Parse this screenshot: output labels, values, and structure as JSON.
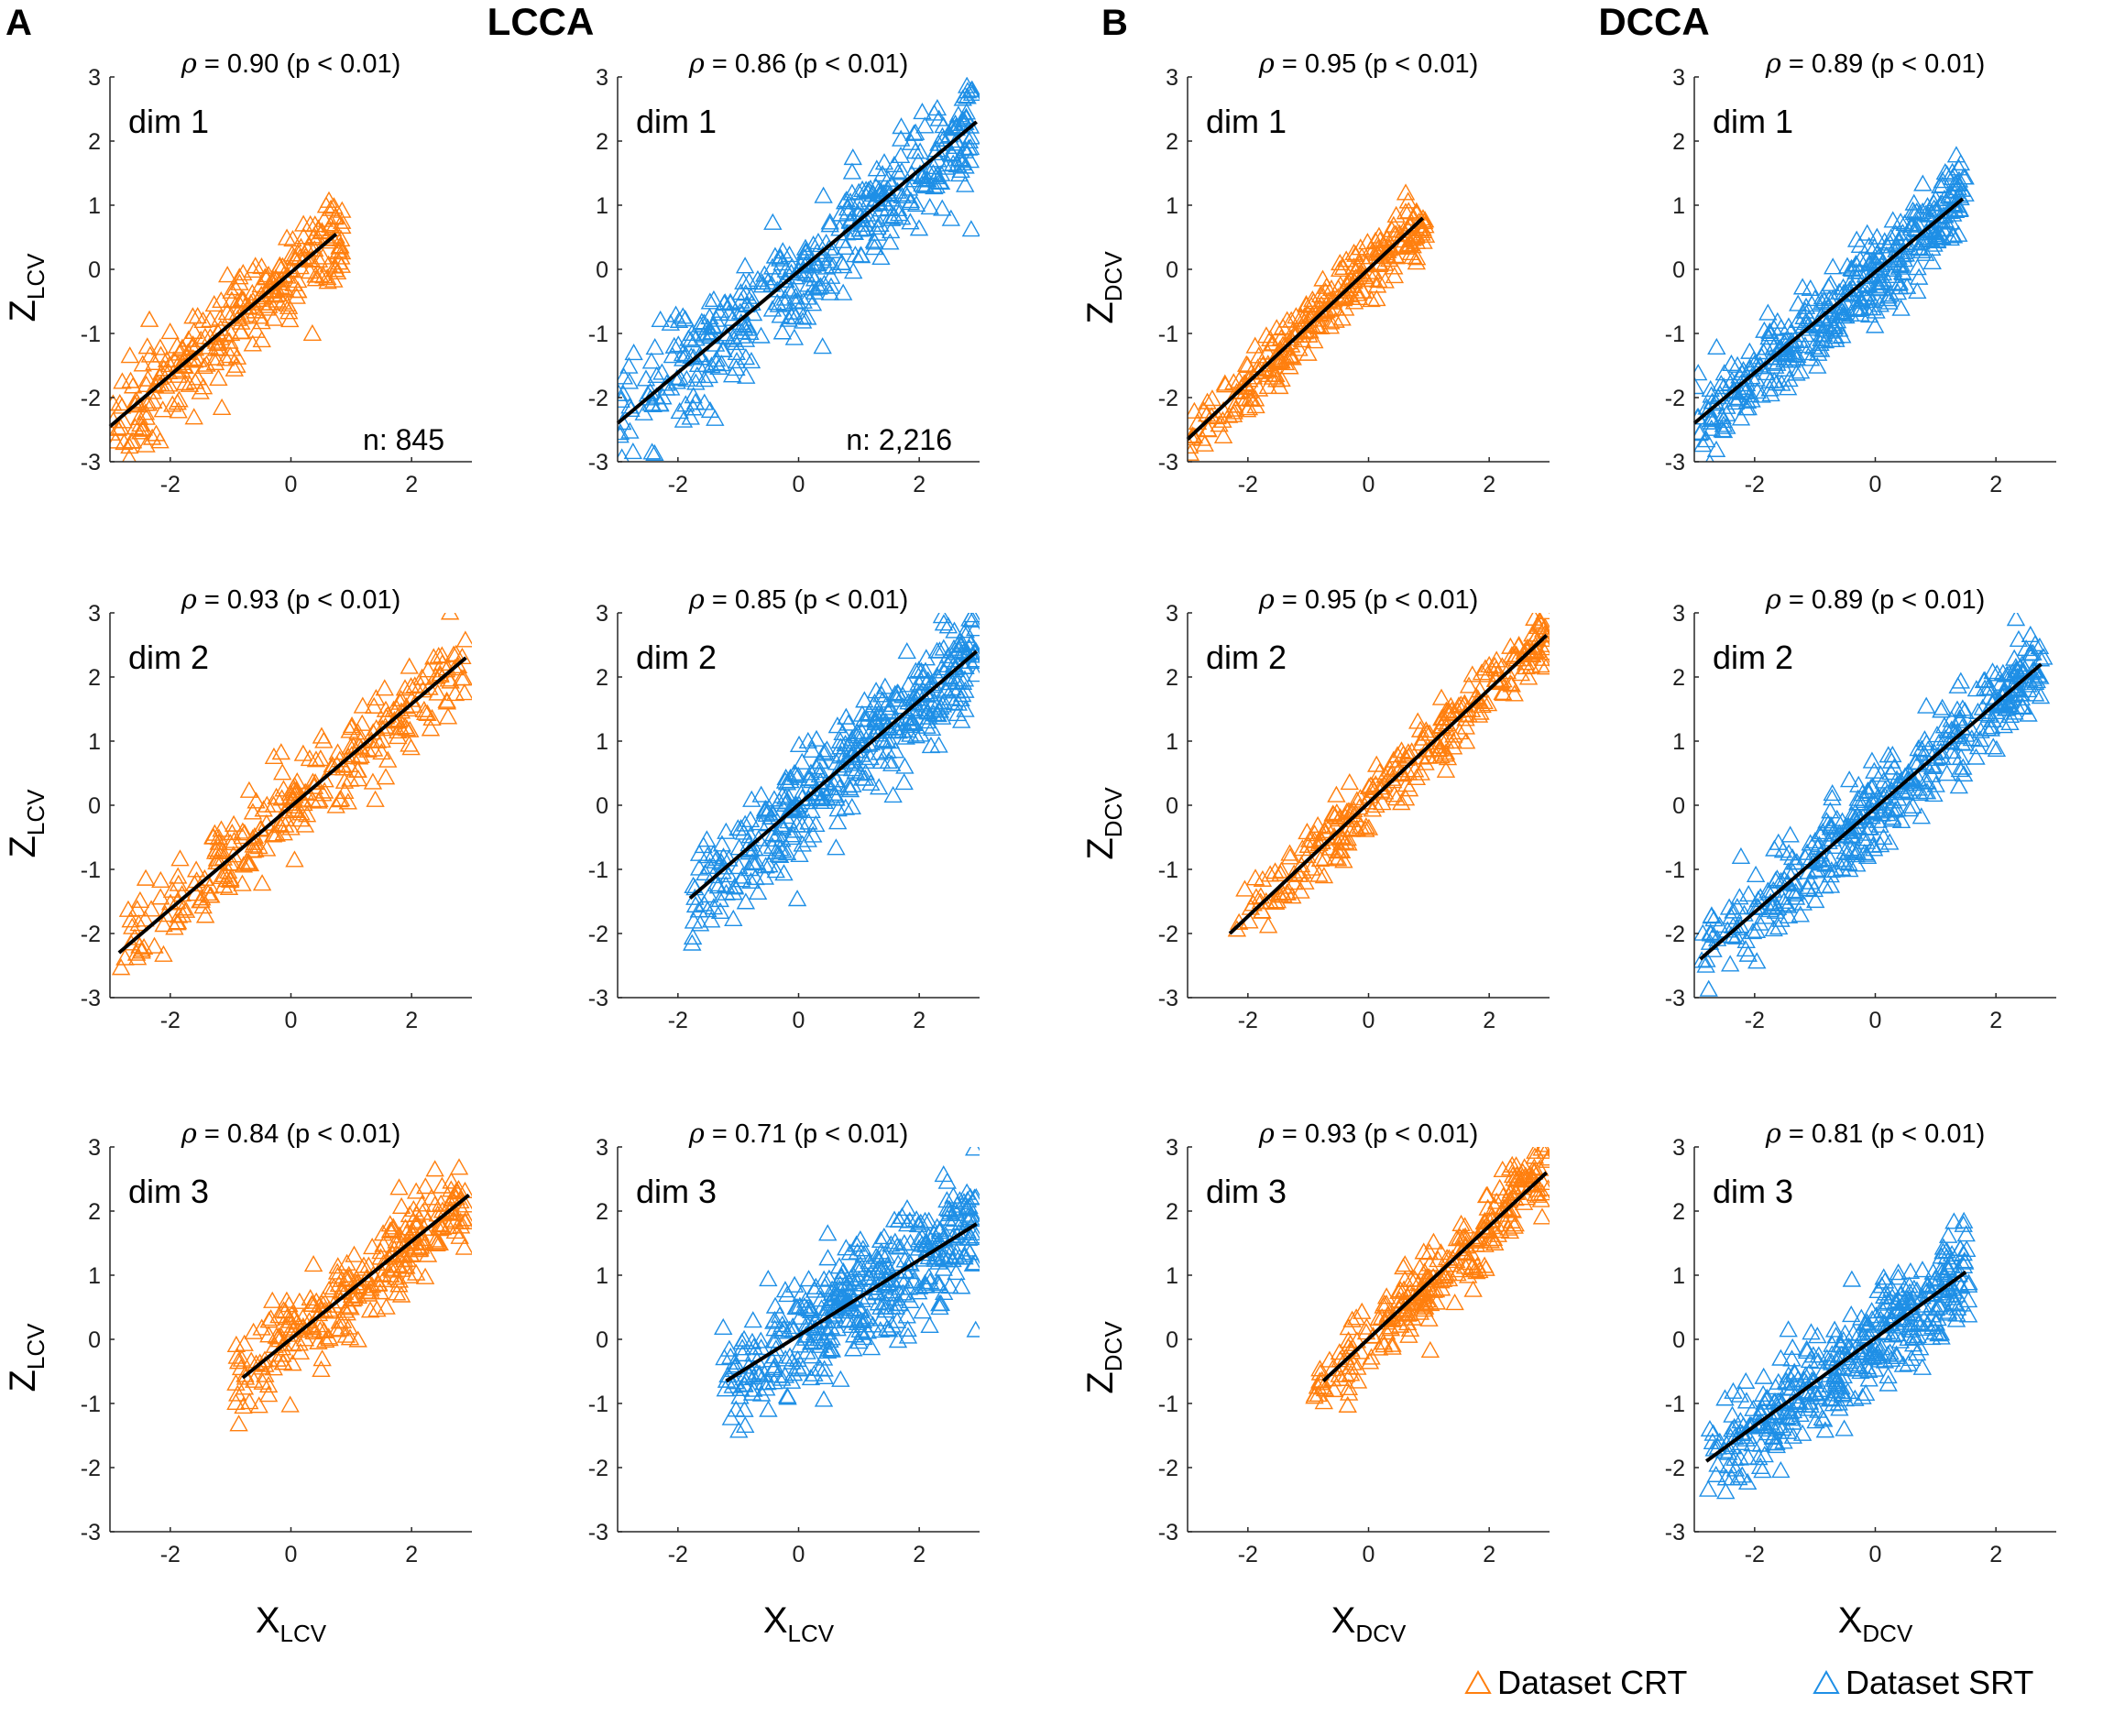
{
  "figure": {
    "panel_a_label": "A",
    "panel_b_label": "B",
    "panel_a_title": "LCCA",
    "panel_b_title": "DCCA",
    "legend": [
      {
        "label": "Dataset CRT",
        "color": "#FF7F0E"
      },
      {
        "label": "Dataset SRT",
        "color": "#1E8FE6"
      }
    ],
    "colors": {
      "CRT": "#FF7F0E",
      "SRT": "#1E8FE6",
      "fit": "#000000"
    }
  },
  "chart_data": [
    {
      "type": "scatter",
      "method": "LCCA",
      "dataset": "CRT",
      "dim_label": "dim 1",
      "rho_text": "= 0.90 (p < 0.01)",
      "rho": 0.9,
      "p": "< 0.01",
      "n_label": "n: 845",
      "xlabel": "X",
      "xlabel_sub": "LCV",
      "ylabel": "Z",
      "ylabel_sub": "LCV",
      "xlim": [
        -3,
        3
      ],
      "ylim": [
        -3,
        3
      ],
      "xticks": [
        -2,
        0,
        2
      ],
      "yticks": [
        -3,
        -2,
        -1,
        0,
        1,
        2,
        3
      ],
      "xrange": [
        -3.0,
        0.85
      ],
      "fit_line": {
        "x": [
          -3.0,
          0.75
        ],
        "y": [
          -2.45,
          0.55
        ]
      },
      "spread": 0.35
    },
    {
      "type": "scatter",
      "method": "LCCA",
      "dataset": "SRT",
      "dim_label": "dim 1",
      "rho_text": "= 0.86 (p < 0.01)",
      "rho": 0.86,
      "p": "< 0.01",
      "n_label": "n: 2,216",
      "xlabel": "X",
      "xlabel_sub": "LCV",
      "ylabel": "Z",
      "ylabel_sub": "LCV",
      "xlim": [
        -3,
        3
      ],
      "ylim": [
        -3,
        3
      ],
      "xticks": [
        -2,
        0,
        2
      ],
      "yticks": [
        -3,
        -2,
        -1,
        0,
        1,
        2,
        3
      ],
      "xrange": [
        -3.0,
        2.9
      ],
      "fit_line": {
        "x": [
          -3.0,
          2.95
        ],
        "y": [
          -2.4,
          2.3
        ]
      },
      "spread": 0.45
    },
    {
      "type": "scatter",
      "method": "DCCA",
      "dataset": "CRT",
      "dim_label": "dim 1",
      "rho_text": "= 0.95 (p < 0.01)",
      "rho": 0.95,
      "p": "< 0.01",
      "xlabel": "X",
      "xlabel_sub": "DCV",
      "ylabel": "Z",
      "ylabel_sub": "DCV",
      "xlim": [
        -3,
        3
      ],
      "ylim": [
        -3,
        3
      ],
      "xticks": [
        -2,
        0,
        2
      ],
      "yticks": [
        -3,
        -2,
        -1,
        0,
        1,
        2,
        3
      ],
      "xrange": [
        -3.0,
        0.95
      ],
      "fit_line": {
        "x": [
          -3.0,
          0.9
        ],
        "y": [
          -2.65,
          0.8
        ]
      },
      "spread": 0.25
    },
    {
      "type": "scatter",
      "method": "DCCA",
      "dataset": "SRT",
      "dim_label": "dim 1",
      "rho_text": "= 0.89 (p < 0.01)",
      "rho": 0.89,
      "p": "< 0.01",
      "xlabel": "X",
      "xlabel_sub": "DCV",
      "ylabel": "Z",
      "ylabel_sub": "DCV",
      "xlim": [
        -3,
        3
      ],
      "ylim": [
        -3,
        3
      ],
      "xticks": [
        -2,
        0,
        2
      ],
      "yticks": [
        -3,
        -2,
        -1,
        0,
        1,
        2,
        3
      ],
      "xrange": [
        -3.0,
        1.5
      ],
      "fit_line": {
        "x": [
          -3.0,
          1.45
        ],
        "y": [
          -2.4,
          1.1
        ]
      },
      "spread": 0.35
    },
    {
      "type": "scatter",
      "method": "LCCA",
      "dataset": "CRT",
      "dim_label": "dim 2",
      "rho_text": "= 0.93 (p < 0.01)",
      "rho": 0.93,
      "p": "< 0.01",
      "xlabel": "X",
      "xlabel_sub": "LCV",
      "ylabel": "Z",
      "ylabel_sub": "LCV",
      "xlim": [
        -3,
        3
      ],
      "ylim": [
        -3,
        3
      ],
      "xticks": [
        -2,
        0,
        2
      ],
      "yticks": [
        -3,
        -2,
        -1,
        0,
        1,
        2,
        3
      ],
      "xrange": [
        -2.9,
        2.9
      ],
      "fit_line": {
        "x": [
          -2.85,
          2.9
        ],
        "y": [
          -2.3,
          2.3
        ]
      },
      "spread": 0.3
    },
    {
      "type": "scatter",
      "method": "LCCA",
      "dataset": "SRT",
      "dim_label": "dim 2",
      "rho_text": "= 0.85 (p < 0.01)",
      "rho": 0.85,
      "p": "< 0.01",
      "xlabel": "X",
      "xlabel_sub": "LCV",
      "ylabel": "Z",
      "ylabel_sub": "LCV",
      "xlim": [
        -3,
        3
      ],
      "ylim": [
        -3,
        3
      ],
      "xticks": [
        -2,
        0,
        2
      ],
      "yticks": [
        -3,
        -2,
        -1,
        0,
        1,
        2,
        3
      ],
      "xrange": [
        -1.8,
        2.95
      ],
      "fit_line": {
        "x": [
          -1.8,
          2.95
        ],
        "y": [
          -1.45,
          2.4
        ]
      },
      "spread": 0.4
    },
    {
      "type": "scatter",
      "method": "DCCA",
      "dataset": "CRT",
      "dim_label": "dim 2",
      "rho_text": "= 0.95 (p < 0.01)",
      "rho": 0.95,
      "p": "< 0.01",
      "xlabel": "X",
      "xlabel_sub": "DCV",
      "ylabel": "Z",
      "ylabel_sub": "DCV",
      "xlim": [
        -3,
        3
      ],
      "ylim": [
        -3,
        3
      ],
      "xticks": [
        -2,
        0,
        2
      ],
      "yticks": [
        -3,
        -2,
        -1,
        0,
        1,
        2,
        3
      ],
      "xrange": [
        -2.3,
        3.0
      ],
      "fit_line": {
        "x": [
          -2.3,
          2.95
        ],
        "y": [
          -2.0,
          2.65
        ]
      },
      "spread": 0.25
    },
    {
      "type": "scatter",
      "method": "DCCA",
      "dataset": "SRT",
      "dim_label": "dim 2",
      "rho_text": "= 0.89 (p < 0.01)",
      "rho": 0.89,
      "p": "< 0.01",
      "xlabel": "X",
      "xlabel_sub": "DCV",
      "ylabel": "Z",
      "ylabel_sub": "DCV",
      "xlim": [
        -3,
        3
      ],
      "ylim": [
        -3,
        3
      ],
      "xticks": [
        -2,
        0,
        2
      ],
      "yticks": [
        -3,
        -2,
        -1,
        0,
        1,
        2,
        3
      ],
      "xrange": [
        -2.9,
        2.8
      ],
      "fit_line": {
        "x": [
          -2.9,
          2.75
        ],
        "y": [
          -2.4,
          2.2
        ]
      },
      "spread": 0.35
    },
    {
      "type": "scatter",
      "method": "LCCA",
      "dataset": "CRT",
      "dim_label": "dim 3",
      "rho_text": "= 0.84 (p < 0.01)",
      "rho": 0.84,
      "p": "< 0.01",
      "xlabel": "X",
      "xlabel_sub": "LCV",
      "ylabel": "Z",
      "ylabel_sub": "LCV",
      "xlim": [
        -3,
        3
      ],
      "ylim": [
        -3,
        3
      ],
      "xticks": [
        -2,
        0,
        2
      ],
      "yticks": [
        -3,
        -2,
        -1,
        0,
        1,
        2,
        3
      ],
      "xrange": [
        -0.95,
        2.95
      ],
      "fit_line": {
        "x": [
          -0.8,
          2.95
        ],
        "y": [
          -0.6,
          2.25
        ]
      },
      "spread": 0.35
    },
    {
      "type": "scatter",
      "method": "LCCA",
      "dataset": "SRT",
      "dim_label": "dim 3",
      "rho_text": "= 0.71 (p < 0.01)",
      "rho": 0.71,
      "p": "< 0.01",
      "xlabel": "X",
      "xlabel_sub": "LCV",
      "ylabel": "Z",
      "ylabel_sub": "LCV",
      "xlim": [
        -3,
        3
      ],
      "ylim": [
        -3,
        3
      ],
      "xticks": [
        -2,
        0,
        2
      ],
      "yticks": [
        -3,
        -2,
        -1,
        0,
        1,
        2,
        3
      ],
      "xrange": [
        -1.3,
        2.95
      ],
      "fit_line": {
        "x": [
          -1.2,
          2.95
        ],
        "y": [
          -0.65,
          1.8
        ]
      },
      "spread": 0.45
    },
    {
      "type": "scatter",
      "method": "DCCA",
      "dataset": "CRT",
      "dim_label": "dim 3",
      "rho_text": "= 0.93 (p < 0.01)",
      "rho": 0.93,
      "p": "< 0.01",
      "xlabel": "X",
      "xlabel_sub": "DCV",
      "ylabel": "Z",
      "ylabel_sub": "DCV",
      "xlim": [
        -3,
        3
      ],
      "ylim": [
        -3,
        3
      ],
      "xticks": [
        -2,
        0,
        2
      ],
      "yticks": [
        -3,
        -2,
        -1,
        0,
        1,
        2,
        3
      ],
      "xrange": [
        -0.9,
        3.0
      ],
      "fit_line": {
        "x": [
          -0.75,
          2.95
        ],
        "y": [
          -0.65,
          2.6
        ]
      },
      "spread": 0.3
    },
    {
      "type": "scatter",
      "method": "DCCA",
      "dataset": "SRT",
      "dim_label": "dim 3",
      "rho_text": "= 0.81 (p < 0.01)",
      "rho": 0.81,
      "p": "< 0.01",
      "xlabel": "X",
      "xlabel_sub": "DCV",
      "ylabel": "Z",
      "ylabel_sub": "DCV",
      "xlim": [
        -3,
        3
      ],
      "ylim": [
        -3,
        3
      ],
      "xticks": [
        -2,
        0,
        2
      ],
      "yticks": [
        -3,
        -2,
        -1,
        0,
        1,
        2,
        3
      ],
      "xrange": [
        -2.8,
        1.55
      ],
      "fit_line": {
        "x": [
          -2.8,
          1.5
        ],
        "y": [
          -1.9,
          1.05
        ]
      },
      "spread": 0.4
    }
  ]
}
